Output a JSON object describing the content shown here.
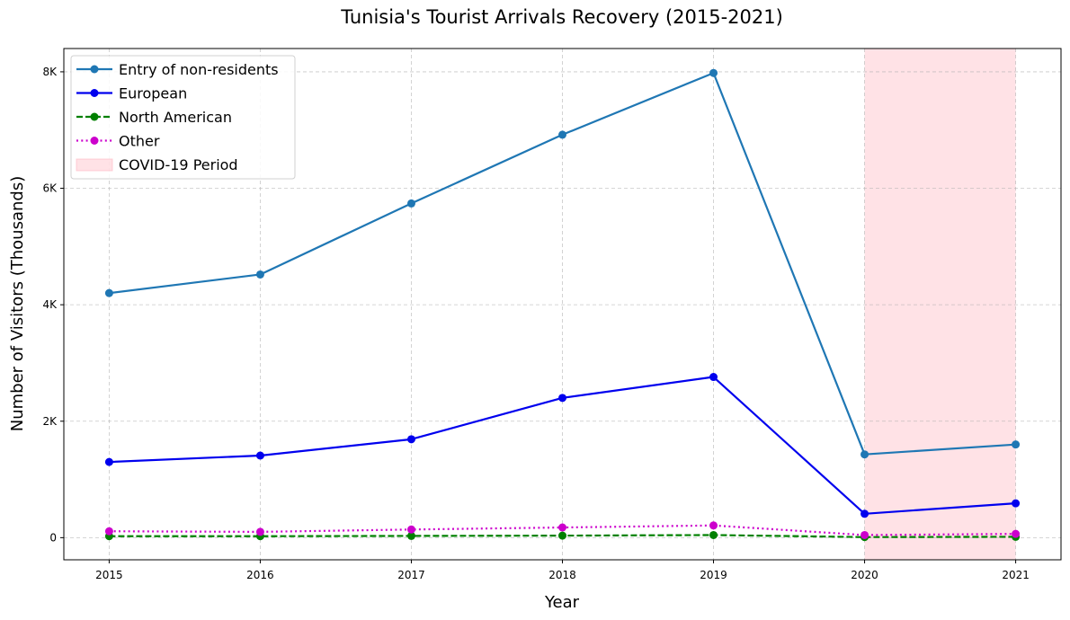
{
  "chart_data": {
    "type": "line",
    "title": "Tunisia's Tourist Arrivals Recovery (2015-2021)",
    "xlabel": "Year",
    "ylabel": "Number of Visitors (Thousands)",
    "x": [
      2015,
      2016,
      2017,
      2018,
      2019,
      2020,
      2021
    ],
    "xlim": [
      2014.7,
      2021.3
    ],
    "ylim": [
      -380,
      8400
    ],
    "yticks": [
      0,
      2000,
      4000,
      6000,
      8000
    ],
    "ytick_labels": [
      "0",
      "2K",
      "4K",
      "6K",
      "8K"
    ],
    "grid": true,
    "legend_position": "top-left",
    "series": [
      {
        "name": "Entry of non-residents",
        "color": "#1f77b4",
        "style": "solid",
        "values": [
          4200,
          4520,
          5740,
          6920,
          7980,
          1430,
          1600
        ]
      },
      {
        "name": "European",
        "color": "#0000ee",
        "style": "solid",
        "values": [
          1300,
          1410,
          1690,
          2400,
          2760,
          410,
          590
        ]
      },
      {
        "name": "North American",
        "color": "#008000",
        "style": "dashed",
        "values": [
          25,
          25,
          30,
          35,
          45,
          10,
          15
        ]
      },
      {
        "name": "Other",
        "color": "#cc00cc",
        "style": "dotted",
        "values": [
          110,
          100,
          140,
          175,
          210,
          45,
          65
        ]
      }
    ],
    "shaded_region": {
      "name": "COVID-19 Period",
      "x_start": 2020,
      "x_end": 2021,
      "color": "#ffb6c1"
    }
  }
}
